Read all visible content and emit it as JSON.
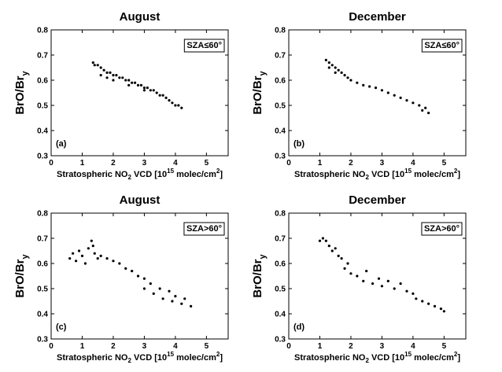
{
  "chart_data": [
    {
      "type": "scatter",
      "title": "August",
      "xlabel": [
        "Stratospheric NO",
        "2",
        " VCD [10",
        "15",
        " molec/cm",
        "2",
        "]"
      ],
      "ylabel": [
        "BrO/Br",
        "y"
      ],
      "annotation": "SZA≤60°",
      "panel_label": "(a)",
      "color": "#000000",
      "x": [
        1.35,
        1.4,
        1.5,
        1.6,
        1.7,
        1.8,
        1.9,
        2.0,
        2.1,
        2.2,
        2.3,
        2.4,
        2.5,
        2.6,
        2.7,
        2.8,
        2.9,
        3.0,
        3.1,
        3.2,
        3.3,
        3.4,
        3.5,
        3.6,
        3.7,
        3.8,
        3.9,
        4.0,
        4.1,
        4.2,
        1.6,
        1.8,
        2.0,
        2.5,
        3.0
      ],
      "y": [
        0.67,
        0.66,
        0.66,
        0.65,
        0.64,
        0.63,
        0.63,
        0.62,
        0.62,
        0.61,
        0.61,
        0.6,
        0.6,
        0.59,
        0.59,
        0.58,
        0.58,
        0.57,
        0.57,
        0.56,
        0.56,
        0.55,
        0.54,
        0.54,
        0.53,
        0.52,
        0.51,
        0.5,
        0.5,
        0.49,
        0.62,
        0.61,
        0.6,
        0.58,
        0.56
      ],
      "xlim": [
        0,
        5.7
      ],
      "ylim": [
        0.3,
        0.8
      ],
      "xticks": [
        0,
        1,
        2,
        3,
        4,
        5
      ],
      "yticks": [
        0.3,
        0.4,
        0.5,
        0.6,
        0.7,
        0.8
      ]
    },
    {
      "type": "scatter",
      "title": "December",
      "xlabel": [
        "Stratospheric NO",
        "2",
        " VCD [10",
        "15",
        " molec/cm",
        "2",
        "]"
      ],
      "ylabel": [
        "BrO/Br",
        "y"
      ],
      "annotation": "SZA≤60°",
      "panel_label": "(b)",
      "color": "#000000",
      "x": [
        1.2,
        1.3,
        1.4,
        1.5,
        1.6,
        1.7,
        1.8,
        1.9,
        2.0,
        2.2,
        2.4,
        2.6,
        2.8,
        3.0,
        3.2,
        3.4,
        3.6,
        3.8,
        4.0,
        4.2,
        4.4,
        4.5,
        1.3,
        1.5,
        4.3
      ],
      "y": [
        0.68,
        0.67,
        0.66,
        0.65,
        0.64,
        0.63,
        0.62,
        0.61,
        0.6,
        0.59,
        0.58,
        0.575,
        0.57,
        0.56,
        0.55,
        0.54,
        0.53,
        0.52,
        0.51,
        0.5,
        0.49,
        0.47,
        0.65,
        0.63,
        0.48
      ],
      "xlim": [
        0,
        5.7
      ],
      "ylim": [
        0.3,
        0.8
      ],
      "xticks": [
        0,
        1,
        2,
        3,
        4,
        5
      ],
      "yticks": [
        0.3,
        0.4,
        0.5,
        0.6,
        0.7,
        0.8
      ]
    },
    {
      "type": "scatter",
      "title": "August",
      "xlabel": [
        "Stratospheric NO",
        "2",
        " VCD [10",
        "15",
        " molec/cm",
        "2",
        "]"
      ],
      "ylabel": [
        "BrO/Br",
        "y"
      ],
      "annotation": "SZA>60°",
      "panel_label": "(c)",
      "color": "#000000",
      "x": [
        0.6,
        0.7,
        0.8,
        0.9,
        1.0,
        1.1,
        1.2,
        1.3,
        1.35,
        1.4,
        1.5,
        1.6,
        1.8,
        2.0,
        2.2,
        2.4,
        2.6,
        2.8,
        3.0,
        3.0,
        3.2,
        3.3,
        3.5,
        3.6,
        3.8,
        3.9,
        4.0,
        4.2,
        4.3,
        4.5
      ],
      "y": [
        0.62,
        0.64,
        0.61,
        0.65,
        0.63,
        0.6,
        0.66,
        0.69,
        0.67,
        0.64,
        0.62,
        0.63,
        0.62,
        0.61,
        0.6,
        0.58,
        0.57,
        0.55,
        0.54,
        0.5,
        0.52,
        0.48,
        0.5,
        0.46,
        0.49,
        0.45,
        0.47,
        0.44,
        0.46,
        0.43
      ],
      "xlim": [
        0,
        5.7
      ],
      "ylim": [
        0.3,
        0.8
      ],
      "xticks": [
        0,
        1,
        2,
        3,
        4,
        5
      ],
      "yticks": [
        0.3,
        0.4,
        0.5,
        0.6,
        0.7,
        0.8
      ]
    },
    {
      "type": "scatter",
      "title": "December",
      "xlabel": [
        "Stratospheric NO",
        "2",
        " VCD [10",
        "15",
        " molec/cm",
        "2",
        "]"
      ],
      "ylabel": [
        "BrO/Br",
        "y"
      ],
      "annotation": "SZA>60°",
      "panel_label": "(d)",
      "color": "#000000",
      "x": [
        1.1,
        1.2,
        1.3,
        1.4,
        1.5,
        1.6,
        1.7,
        1.8,
        2.0,
        2.2,
        2.4,
        2.5,
        2.7,
        2.9,
        3.0,
        3.2,
        3.4,
        3.6,
        3.8,
        4.0,
        4.1,
        4.3,
        4.5,
        4.7,
        4.9,
        5.0,
        1.0,
        1.9
      ],
      "y": [
        0.7,
        0.69,
        0.67,
        0.65,
        0.66,
        0.63,
        0.62,
        0.58,
        0.56,
        0.55,
        0.53,
        0.57,
        0.52,
        0.54,
        0.51,
        0.53,
        0.5,
        0.52,
        0.49,
        0.48,
        0.46,
        0.45,
        0.44,
        0.43,
        0.42,
        0.41,
        0.69,
        0.6
      ],
      "xlim": [
        0,
        5.7
      ],
      "ylim": [
        0.3,
        0.8
      ],
      "xticks": [
        0,
        1,
        2,
        3,
        4,
        5
      ],
      "yticks": [
        0.3,
        0.4,
        0.5,
        0.6,
        0.7,
        0.8
      ]
    }
  ]
}
